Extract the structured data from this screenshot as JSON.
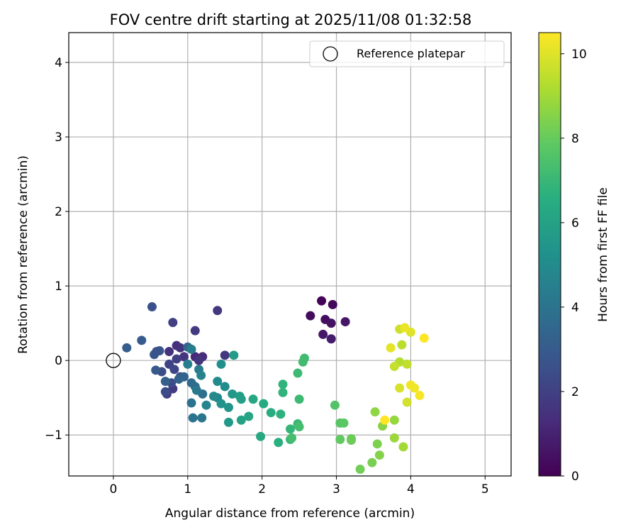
{
  "chart_data": {
    "type": "scatter",
    "title": "FOV centre drift starting at 2025/11/08 01:32:58",
    "xlabel": "Angular distance from reference (arcmin)",
    "ylabel": "Rotation from reference (arcmin)",
    "xlim": [
      -0.6,
      5.35
    ],
    "ylim": [
      -1.55,
      4.4
    ],
    "xticks": [
      0,
      1,
      2,
      3,
      4,
      5
    ],
    "yticks": [
      -1,
      0,
      1,
      2,
      3,
      4
    ],
    "xtick_labels": [
      "0",
      "1",
      "2",
      "3",
      "4",
      "5"
    ],
    "ytick_labels": [
      "−1",
      "0",
      "1",
      "2",
      "3",
      "4"
    ],
    "grid": true,
    "legend": {
      "placement": "top-right",
      "entries": [
        "Reference platepar"
      ]
    },
    "reference_point": {
      "x": 0,
      "y": 0
    },
    "colorbar": {
      "label": "Hours from first FF file",
      "range": [
        0,
        10.5
      ],
      "ticks": [
        0,
        2,
        4,
        6,
        8,
        10
      ],
      "tick_labels": [
        "0",
        "2",
        "4",
        "6",
        "8",
        "10"
      ],
      "colormap": "viridis"
    },
    "points": [
      {
        "x": 2.8,
        "y": 0.8,
        "t": 0.1
      },
      {
        "x": 2.95,
        "y": 0.75,
        "t": 0.2
      },
      {
        "x": 2.65,
        "y": 0.6,
        "t": 0.3
      },
      {
        "x": 2.85,
        "y": 0.55,
        "t": 0.4
      },
      {
        "x": 2.93,
        "y": 0.5,
        "t": 0.5
      },
      {
        "x": 3.12,
        "y": 0.52,
        "t": 0.6
      },
      {
        "x": 2.82,
        "y": 0.35,
        "t": 0.7
      },
      {
        "x": 2.93,
        "y": 0.29,
        "t": 0.8
      },
      {
        "x": 1.1,
        "y": 0.05,
        "t": 1.2
      },
      {
        "x": 1.2,
        "y": 0.05,
        "t": 1.3
      },
      {
        "x": 0.85,
        "y": 0.2,
        "t": 1.4
      },
      {
        "x": 0.75,
        "y": 0.12,
        "t": 1.5
      },
      {
        "x": 0.9,
        "y": 0.17,
        "t": 1.5
      },
      {
        "x": 1.15,
        "y": 0.0,
        "t": 1.6
      },
      {
        "x": 0.95,
        "y": 0.05,
        "t": 1.6
      },
      {
        "x": 1.4,
        "y": 0.67,
        "t": 1.7
      },
      {
        "x": 1.5,
        "y": 0.07,
        "t": 1.7
      },
      {
        "x": 1.1,
        "y": 0.4,
        "t": 1.8
      },
      {
        "x": 0.8,
        "y": -0.38,
        "t": 1.8
      },
      {
        "x": 0.72,
        "y": -0.45,
        "t": 1.9
      },
      {
        "x": 0.8,
        "y": 0.51,
        "t": 2.0
      },
      {
        "x": 0.85,
        "y": 0.02,
        "t": 2.0
      },
      {
        "x": 0.75,
        "y": -0.05,
        "t": 2.1
      },
      {
        "x": 0.82,
        "y": -0.12,
        "t": 2.2
      },
      {
        "x": 0.9,
        "y": -0.22,
        "t": 2.3
      },
      {
        "x": 0.7,
        "y": -0.42,
        "t": 2.4
      },
      {
        "x": 0.78,
        "y": -0.3,
        "t": 2.4
      },
      {
        "x": 0.65,
        "y": -0.15,
        "t": 2.5
      },
      {
        "x": 0.58,
        "y": 0.12,
        "t": 2.5
      },
      {
        "x": 0.52,
        "y": 0.72,
        "t": 2.6
      },
      {
        "x": 0.62,
        "y": 0.13,
        "t": 2.7
      },
      {
        "x": 0.55,
        "y": 0.08,
        "t": 2.8
      },
      {
        "x": 0.57,
        "y": -0.13,
        "t": 2.9
      },
      {
        "x": 0.38,
        "y": 0.27,
        "t": 3.0
      },
      {
        "x": 0.18,
        "y": 0.17,
        "t": 3.1
      },
      {
        "x": 0.7,
        "y": -0.28,
        "t": 3.2
      },
      {
        "x": 0.88,
        "y": -0.25,
        "t": 3.3
      },
      {
        "x": 0.95,
        "y": -0.22,
        "t": 3.4
      },
      {
        "x": 1.0,
        "y": 0.18,
        "t": 3.5
      },
      {
        "x": 1.05,
        "y": -0.3,
        "t": 3.6
      },
      {
        "x": 1.1,
        "y": -0.35,
        "t": 3.7
      },
      {
        "x": 1.2,
        "y": -0.45,
        "t": 3.8
      },
      {
        "x": 1.05,
        "y": -0.57,
        "t": 3.9
      },
      {
        "x": 1.07,
        "y": -0.77,
        "t": 4.0
      },
      {
        "x": 1.19,
        "y": -0.77,
        "t": 4.1
      },
      {
        "x": 1.12,
        "y": -0.4,
        "t": 4.2
      },
      {
        "x": 1.15,
        "y": -0.12,
        "t": 4.3
      },
      {
        "x": 1.05,
        "y": 0.15,
        "t": 4.4
      },
      {
        "x": 1.0,
        "y": -0.05,
        "t": 4.5
      },
      {
        "x": 1.18,
        "y": -0.2,
        "t": 4.6
      },
      {
        "x": 1.25,
        "y": -0.6,
        "t": 4.7
      },
      {
        "x": 1.4,
        "y": -0.5,
        "t": 4.8
      },
      {
        "x": 1.35,
        "y": -0.48,
        "t": 4.9
      },
      {
        "x": 1.4,
        "y": -0.28,
        "t": 5.0
      },
      {
        "x": 1.5,
        "y": -0.35,
        "t": 5.1
      },
      {
        "x": 1.45,
        "y": -0.05,
        "t": 5.2
      },
      {
        "x": 1.45,
        "y": -0.58,
        "t": 5.3
      },
      {
        "x": 1.55,
        "y": -0.63,
        "t": 5.4
      },
      {
        "x": 1.6,
        "y": -0.45,
        "t": 5.5
      },
      {
        "x": 1.55,
        "y": -0.83,
        "t": 5.6
      },
      {
        "x": 1.62,
        "y": 0.07,
        "t": 5.7
      },
      {
        "x": 1.7,
        "y": -0.48,
        "t": 5.8
      },
      {
        "x": 1.72,
        "y": -0.52,
        "t": 5.9
      },
      {
        "x": 1.72,
        "y": -0.8,
        "t": 6.0
      },
      {
        "x": 1.82,
        "y": -0.75,
        "t": 6.1
      },
      {
        "x": 1.88,
        "y": -0.52,
        "t": 6.2
      },
      {
        "x": 1.98,
        "y": -1.02,
        "t": 6.3
      },
      {
        "x": 2.02,
        "y": -0.58,
        "t": 6.4
      },
      {
        "x": 2.12,
        "y": -0.7,
        "t": 6.5
      },
      {
        "x": 2.22,
        "y": -1.1,
        "t": 6.6
      },
      {
        "x": 2.25,
        "y": -0.72,
        "t": 6.7
      },
      {
        "x": 2.28,
        "y": -0.32,
        "t": 6.8
      },
      {
        "x": 2.28,
        "y": -0.43,
        "t": 6.8
      },
      {
        "x": 2.38,
        "y": -0.92,
        "t": 6.9
      },
      {
        "x": 2.38,
        "y": -1.06,
        "t": 7.0
      },
      {
        "x": 2.48,
        "y": -0.85,
        "t": 7.0
      },
      {
        "x": 2.48,
        "y": -0.17,
        "t": 7.1
      },
      {
        "x": 2.5,
        "y": -0.52,
        "t": 7.1
      },
      {
        "x": 2.55,
        "y": -0.02,
        "t": 7.2
      },
      {
        "x": 2.57,
        "y": 0.03,
        "t": 7.2
      },
      {
        "x": 2.4,
        "y": -1.04,
        "t": 7.3
      },
      {
        "x": 2.5,
        "y": -0.89,
        "t": 7.3
      },
      {
        "x": 2.98,
        "y": -0.6,
        "t": 7.6
      },
      {
        "x": 3.05,
        "y": -0.84,
        "t": 7.7
      },
      {
        "x": 3.1,
        "y": -0.84,
        "t": 7.8
      },
      {
        "x": 3.05,
        "y": -1.06,
        "t": 7.9
      },
      {
        "x": 3.2,
        "y": -1.05,
        "t": 8.0
      },
      {
        "x": 3.2,
        "y": -1.07,
        "t": 8.1
      },
      {
        "x": 3.32,
        "y": -1.46,
        "t": 8.2
      },
      {
        "x": 3.48,
        "y": -1.37,
        "t": 8.3
      },
      {
        "x": 3.55,
        "y": -1.12,
        "t": 8.4
      },
      {
        "x": 3.58,
        "y": -1.27,
        "t": 8.5
      },
      {
        "x": 3.62,
        "y": -0.88,
        "t": 8.6
      },
      {
        "x": 3.52,
        "y": -0.69,
        "t": 8.7
      },
      {
        "x": 3.78,
        "y": -0.8,
        "t": 8.8
      },
      {
        "x": 3.78,
        "y": -1.04,
        "t": 8.9
      },
      {
        "x": 3.9,
        "y": -1.16,
        "t": 9.0
      },
      {
        "x": 3.85,
        "y": -0.02,
        "t": 9.3
      },
      {
        "x": 3.88,
        "y": 0.21,
        "t": 9.4
      },
      {
        "x": 3.95,
        "y": -0.05,
        "t": 9.5
      },
      {
        "x": 3.78,
        "y": -0.08,
        "t": 9.6
      },
      {
        "x": 3.85,
        "y": 0.42,
        "t": 9.7
      },
      {
        "x": 3.95,
        "y": -0.56,
        "t": 9.8
      },
      {
        "x": 3.85,
        "y": -0.37,
        "t": 9.9
      },
      {
        "x": 4.0,
        "y": 0.38,
        "t": 10.0
      },
      {
        "x": 3.73,
        "y": 0.17,
        "t": 10.1
      },
      {
        "x": 3.92,
        "y": 0.44,
        "t": 10.2
      },
      {
        "x": 4.0,
        "y": -0.33,
        "t": 10.3
      },
      {
        "x": 4.05,
        "y": -0.37,
        "t": 10.3
      },
      {
        "x": 4.12,
        "y": -0.47,
        "t": 10.4
      },
      {
        "x": 4.18,
        "y": 0.3,
        "t": 10.5
      },
      {
        "x": 3.65,
        "y": -0.8,
        "t": 10.5
      }
    ]
  }
}
